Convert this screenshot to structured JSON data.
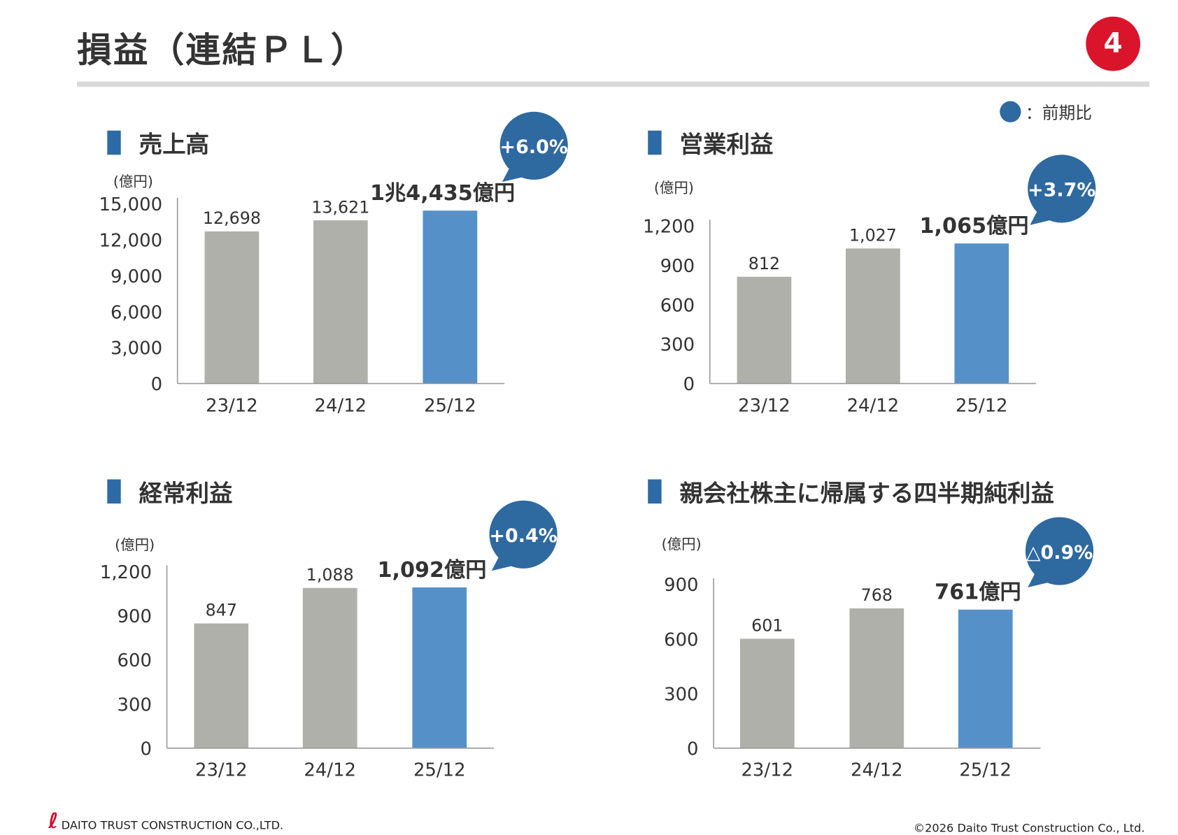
{
  "header": {
    "title": "損益（連結ＰＬ）",
    "page_number": "4"
  },
  "legend": {
    "label": "：前期比",
    "marker_color": "#2e69a0"
  },
  "colors": {
    "prior": "#b0b0ab",
    "current": "#5591c8",
    "bubble": "#2e69a0",
    "accent": "#d9142b"
  },
  "chart_data": [
    {
      "type": "bar",
      "title": "売上高",
      "unit": "(億円)",
      "categories": [
        "23/12",
        "24/12",
        "25/12"
      ],
      "values": [
        12698,
        13621,
        14435
      ],
      "value_labels": [
        "12,698",
        "13,621",
        "1兆4,435億円"
      ],
      "ylim": [
        0,
        15000
      ],
      "yticks": [
        "0",
        "3,000",
        "6,000",
        "9,000",
        "12,000",
        "15,000"
      ],
      "ytick_values": [
        0,
        3000,
        6000,
        9000,
        12000,
        15000
      ],
      "change": "+6.0%"
    },
    {
      "type": "bar",
      "title": "営業利益",
      "unit": "(億円)",
      "categories": [
        "23/12",
        "24/12",
        "25/12"
      ],
      "values": [
        812,
        1027,
        1065
      ],
      "value_labels": [
        "812",
        "1,027",
        "1,065億円"
      ],
      "ylim": [
        0,
        1200
      ],
      "yticks": [
        "0",
        "300",
        "600",
        "900",
        "1,200"
      ],
      "ytick_values": [
        0,
        300,
        600,
        900,
        1200
      ],
      "change": "+3.7%"
    },
    {
      "type": "bar",
      "title": "経常利益",
      "unit": "(億円)",
      "categories": [
        "23/12",
        "24/12",
        "25/12"
      ],
      "values": [
        847,
        1088,
        1092
      ],
      "value_labels": [
        "847",
        "1,088",
        "1,092億円"
      ],
      "ylim": [
        0,
        1200
      ],
      "yticks": [
        "0",
        "300",
        "600",
        "900",
        "1,200"
      ],
      "ytick_values": [
        0,
        300,
        600,
        900,
        1200
      ],
      "change": "+0.4%"
    },
    {
      "type": "bar",
      "title": "親会社株主に帰属する四半期純利益",
      "unit": "(億円)",
      "categories": [
        "23/12",
        "24/12",
        "25/12"
      ],
      "values": [
        601,
        768,
        761
      ],
      "value_labels": [
        "601",
        "768",
        "761億円"
      ],
      "ylim": [
        0,
        900
      ],
      "yticks": [
        "0",
        "300",
        "600",
        "900"
      ],
      "ytick_values": [
        0,
        300,
        600,
        900
      ],
      "change": "△0.9%"
    }
  ],
  "footer": {
    "company_logo": "DAITO TRUST CONSTRUCTION CO.,LTD.",
    "copyright": "©2026 Daito Trust Construction Co., Ltd."
  }
}
